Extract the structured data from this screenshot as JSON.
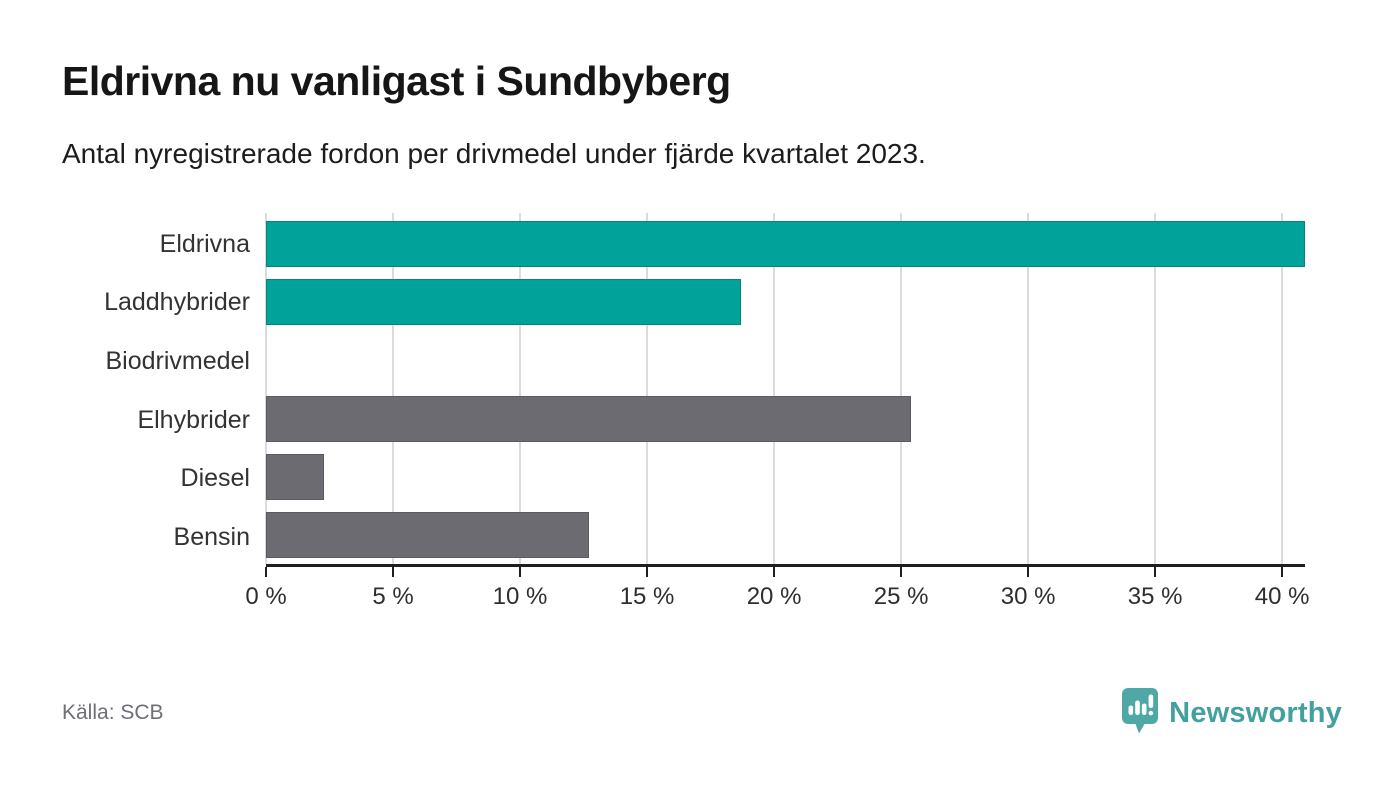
{
  "header": {
    "title": "Eldrivna nu vanligast i Sundbyberg",
    "subtitle": "Antal nyregistrerade fordon per drivmedel under fjärde kvartalet 2023."
  },
  "chart_data": {
    "type": "bar",
    "orientation": "horizontal",
    "title": "Eldrivna nu vanligast i Sundbyberg",
    "subtitle": "Antal nyregistrerade fordon per drivmedel under fjärde kvartalet 2023.",
    "categories": [
      "Eldrivna",
      "Laddhybrider",
      "Biodrivmedel",
      "Elhybrider",
      "Diesel",
      "Bensin"
    ],
    "values": [
      40.9,
      18.7,
      0,
      25.4,
      2.3,
      12.7
    ],
    "unit": "%",
    "bar_colors": [
      "#00A29A",
      "#00A29A",
      "#6C6B71",
      "#6C6B71",
      "#6C6B71",
      "#6C6B71"
    ],
    "xlabel": "",
    "ylabel": "",
    "xlim": [
      0,
      40.9
    ],
    "x_ticks": [
      0,
      5,
      10,
      15,
      20,
      25,
      30,
      35,
      40
    ],
    "x_tick_labels": [
      "0 %",
      "5 %",
      "10 %",
      "15 %",
      "20 %",
      "25 %",
      "30 %",
      "35 %",
      "40 %"
    ],
    "grid": "vertical-gridlines-on",
    "legend": "none"
  },
  "colors": {
    "accent_teal": "#00A29A",
    "neutral_gray": "#6C6B71",
    "gridline": "#DBDBDB",
    "axis": "#1F1F1F",
    "brand_teal": "#42A1A0"
  },
  "footer": {
    "source": "Källa: SCB",
    "brand": "Newsworthy"
  }
}
